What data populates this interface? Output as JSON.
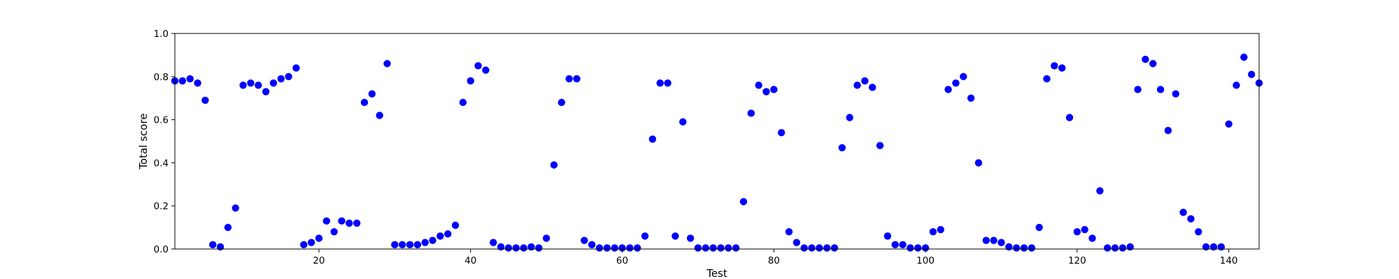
{
  "chart_data": {
    "type": "scatter",
    "title": "",
    "xlabel": "Test",
    "ylabel": "Total score",
    "xlim": [
      1,
      144
    ],
    "ylim": [
      0.0,
      1.0
    ],
    "xticks": [
      20,
      40,
      60,
      80,
      100,
      120,
      140
    ],
    "yticks": [
      "0.0",
      "0.2",
      "0.4",
      "0.6",
      "0.8",
      "1.0"
    ],
    "grid": false,
    "marker_color": "#0000ff",
    "series": [
      {
        "x": [
          1,
          2,
          3,
          4,
          5,
          6,
          7,
          8,
          9,
          10,
          11,
          12,
          13,
          14,
          15,
          16,
          17,
          18,
          19,
          20,
          21,
          22,
          23,
          24,
          25,
          26,
          27,
          28,
          29,
          30,
          31,
          32,
          33,
          34,
          35,
          36,
          37,
          38,
          39,
          40,
          41,
          42,
          43,
          44,
          45,
          46,
          47,
          48,
          49,
          50,
          51,
          52,
          53,
          54,
          55,
          56,
          57,
          58,
          59,
          60,
          61,
          62,
          63,
          64,
          65,
          66,
          67,
          68,
          69,
          70,
          71,
          72,
          73,
          74,
          75,
          76,
          77,
          78,
          79,
          80,
          81,
          82,
          83,
          84,
          85,
          86,
          87,
          88,
          89,
          90,
          91,
          92,
          93,
          94,
          95,
          96,
          97,
          98,
          99,
          100,
          101,
          102,
          103,
          104,
          105,
          106,
          107,
          108,
          109,
          110,
          111,
          112,
          113,
          114,
          115,
          116,
          117,
          118,
          119,
          120,
          121,
          122,
          123,
          124,
          125,
          126,
          127,
          128,
          129,
          130,
          131,
          132,
          133,
          134,
          135,
          136,
          137,
          138,
          139,
          140,
          141,
          142,
          143,
          144
        ],
        "y": [
          0.78,
          0.78,
          0.79,
          0.77,
          0.69,
          0.02,
          0.01,
          0.1,
          0.19,
          0.76,
          0.77,
          0.76,
          0.73,
          0.77,
          0.79,
          0.8,
          0.84,
          0.02,
          0.03,
          0.05,
          0.13,
          0.08,
          0.13,
          0.12,
          0.12,
          0.68,
          0.72,
          0.62,
          0.86,
          0.02,
          0.02,
          0.02,
          0.02,
          0.03,
          0.04,
          0.06,
          0.07,
          0.11,
          0.68,
          0.78,
          0.85,
          0.83,
          0.03,
          0.01,
          0.005,
          0.005,
          0.005,
          0.01,
          0.005,
          0.05,
          0.39,
          0.68,
          0.79,
          0.79,
          0.04,
          0.02,
          0.005,
          0.005,
          0.005,
          0.005,
          0.005,
          0.005,
          0.06,
          0.51,
          0.77,
          0.77,
          0.06,
          0.59,
          0.05,
          0.005,
          0.005,
          0.005,
          0.005,
          0.005,
          0.005,
          0.22,
          0.63,
          0.76,
          0.73,
          0.74,
          0.54,
          0.08,
          0.03,
          0.005,
          0.005,
          0.005,
          0.005,
          0.005,
          0.47,
          0.61,
          0.76,
          0.78,
          0.75,
          0.48,
          0.06,
          0.02,
          0.02,
          0.005,
          0.005,
          0.005,
          0.08,
          0.09,
          0.74,
          0.77,
          0.8,
          0.7,
          0.4,
          0.04,
          0.04,
          0.03,
          0.01,
          0.005,
          0.005,
          0.005,
          0.1,
          0.79,
          0.85,
          0.84,
          0.61,
          0.08,
          0.09,
          0.05,
          0.27,
          0.005,
          0.005,
          0.005,
          0.01,
          0.74,
          0.88,
          0.86,
          0.74,
          0.55,
          0.72,
          0.17,
          0.14,
          0.08,
          0.01,
          0.01,
          0.01,
          0.58,
          0.76,
          0.89,
          0.81,
          0.77
        ]
      }
    ]
  }
}
